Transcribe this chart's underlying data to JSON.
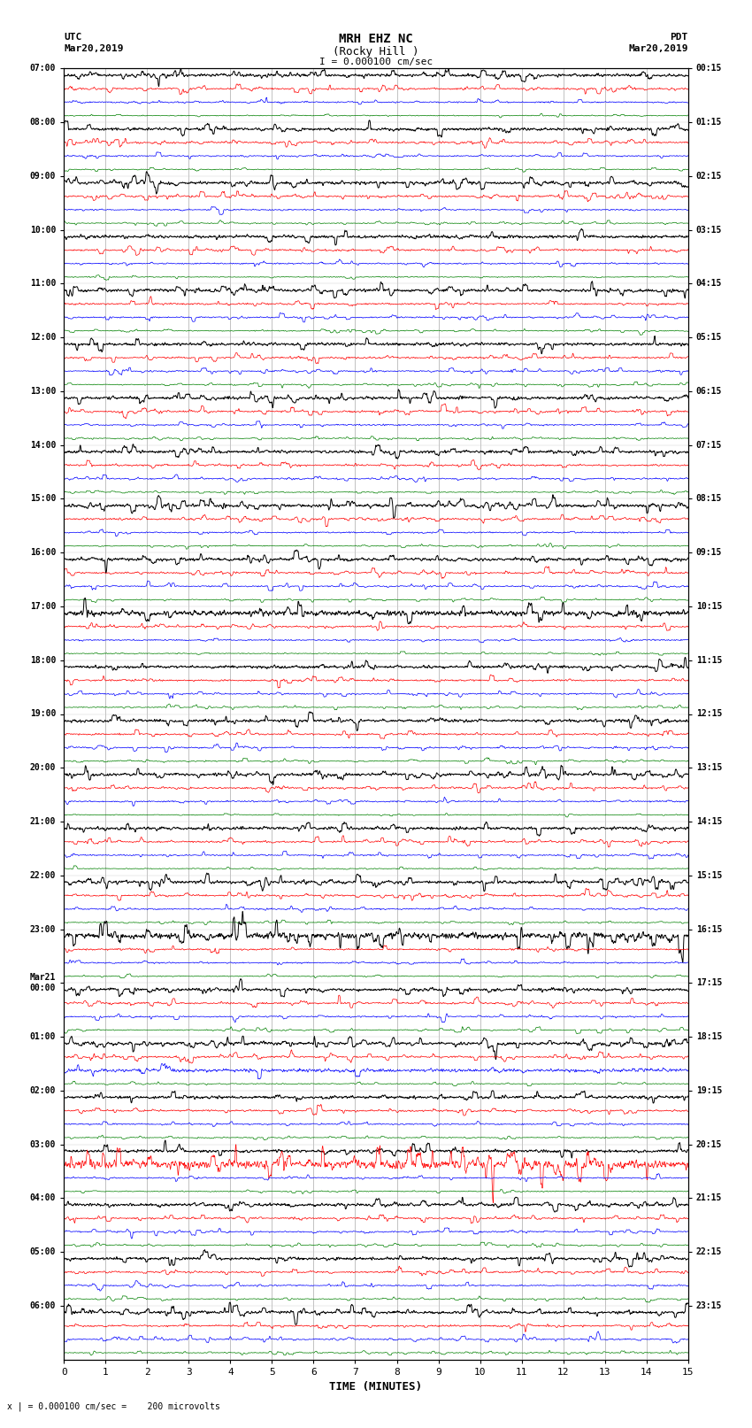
{
  "title_line1": "MRH EHZ NC",
  "title_line2": "(Rocky Hill )",
  "scale_text": "I = 0.000100 cm/sec",
  "left_header": "UTC",
  "left_date": "Mar20,2019",
  "right_header": "PDT",
  "right_date": "Mar20,2019",
  "bottom_label": "TIME (MINUTES)",
  "bottom_note": "x | = 0.000100 cm/sec =    200 microvolts",
  "xlabel_ticks": [
    0,
    1,
    2,
    3,
    4,
    5,
    6,
    7,
    8,
    9,
    10,
    11,
    12,
    13,
    14,
    15
  ],
  "utc_labels": [
    "07:00",
    "08:00",
    "09:00",
    "10:00",
    "11:00",
    "12:00",
    "13:00",
    "14:00",
    "15:00",
    "16:00",
    "17:00",
    "18:00",
    "19:00",
    "20:00",
    "21:00",
    "22:00",
    "23:00",
    "Mar21\n00:00",
    "01:00",
    "02:00",
    "03:00",
    "04:00",
    "05:00",
    "06:00"
  ],
  "pdt_labels": [
    "00:15",
    "01:15",
    "02:15",
    "03:15",
    "04:15",
    "05:15",
    "06:15",
    "07:15",
    "08:15",
    "09:15",
    "10:15",
    "11:15",
    "12:15",
    "13:15",
    "14:15",
    "15:15",
    "16:15",
    "17:15",
    "18:15",
    "19:15",
    "20:15",
    "21:15",
    "22:15",
    "23:15"
  ],
  "n_rows": 24,
  "traces_per_row": 4,
  "trace_colors": [
    "black",
    "red",
    "blue",
    "green"
  ],
  "trace_linewidths": [
    0.7,
    0.5,
    0.5,
    0.5
  ],
  "noise_amps": [
    0.25,
    0.15,
    0.12,
    0.08
  ],
  "bg_color": "white",
  "grid_color": "#aaaaaa",
  "text_color": "black",
  "font_family": "monospace",
  "fig_width": 8.5,
  "fig_height": 16.13
}
